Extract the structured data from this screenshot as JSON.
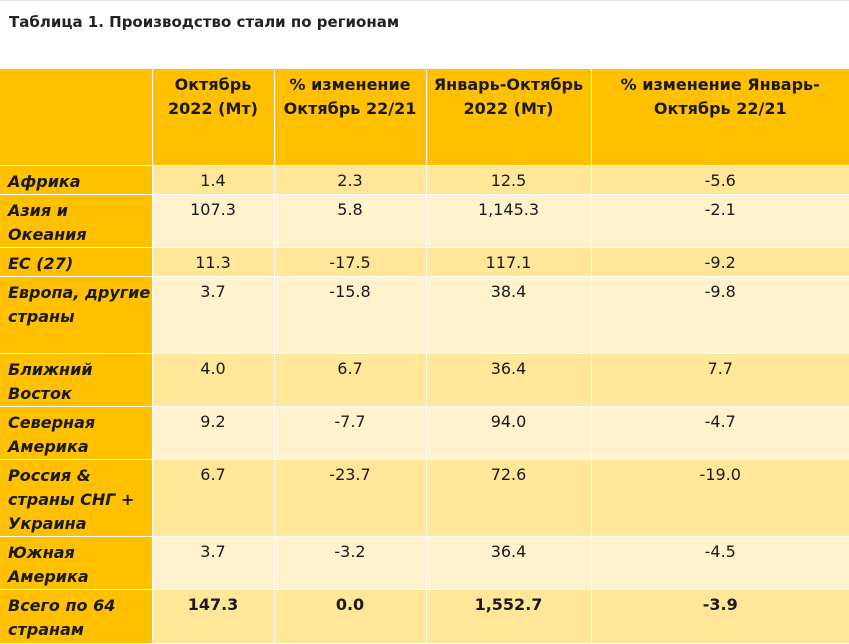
{
  "title": "Таблица 1. Производство стали по регионам",
  "headers": [
    "",
    "Октябрь 2022 (Мт)",
    "% изменение Октябрь 22/21",
    "Январь-Октябрь 2022 (Мт)",
    "% изменение Январь-Октябрь 22/21"
  ],
  "rows": [
    {
      "region": "Африка",
      "oct": "1.4",
      "oct_chg": "2.3",
      "ytd": "12.5",
      "ytd_chg": "-5.6"
    },
    {
      "region": "Азия и Океания",
      "oct": "107.3",
      "oct_chg": "5.8",
      "ytd": "1,145.3",
      "ytd_chg": "-2.1"
    },
    {
      "region": "ЕС (27)",
      "oct": "11.3",
      "oct_chg": "-17.5",
      "ytd": "117.1",
      "ytd_chg": "-9.2"
    },
    {
      "region": "Европа, другие страны",
      "oct": "3.7",
      "oct_chg": "-15.8",
      "ytd": "38.4",
      "ytd_chg": "-9.8"
    },
    {
      "region": "Ближний Восток",
      "oct": "4.0",
      "oct_chg": "6.7",
      "ytd": "36.4",
      "ytd_chg": "7.7"
    },
    {
      "region": "Северная Америка",
      "oct": "9.2",
      "oct_chg": "-7.7",
      "ytd": "94.0",
      "ytd_chg": "-4.7"
    },
    {
      "region": "Россия & страны СНГ + Украина",
      "oct": "6.7",
      "oct_chg": "-23.7",
      "ytd": "72.6",
      "ytd_chg": "-19.0"
    },
    {
      "region": "Южная Америка",
      "oct": "3.7",
      "oct_chg": "-3.2",
      "ytd": "36.4",
      "ytd_chg": "-4.5"
    },
    {
      "region": "Всего по 64 странам",
      "oct": "147.3",
      "oct_chg": "0.0",
      "ytd": "1,552.7",
      "ytd_chg": "-3.9"
    }
  ],
  "colors": {
    "header": "#ffc000",
    "row_odd": "#ffe699",
    "row_even": "#fff2cc"
  }
}
